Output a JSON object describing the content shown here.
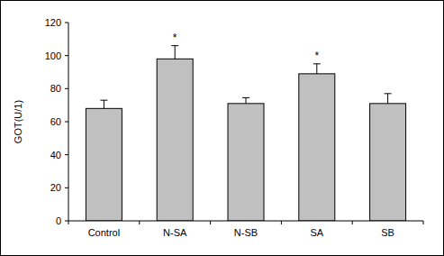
{
  "chart_data": {
    "type": "bar",
    "y_label": "GOT(U/1)",
    "categories": [
      "Control",
      "N-SA",
      "N-SB",
      "SA",
      "SB"
    ],
    "values": [
      68,
      98,
      71,
      89,
      71
    ],
    "errors": [
      5,
      8,
      3.5,
      6,
      6
    ],
    "color": "#c0c0c0",
    "ylim": [
      0,
      120
    ],
    "yticks": [
      0,
      20,
      40,
      60,
      80,
      100,
      120
    ],
    "grid": false,
    "annotations": [
      {
        "text": "*",
        "category": "N-SA"
      },
      {
        "text": "*",
        "category": "SA"
      }
    ]
  }
}
